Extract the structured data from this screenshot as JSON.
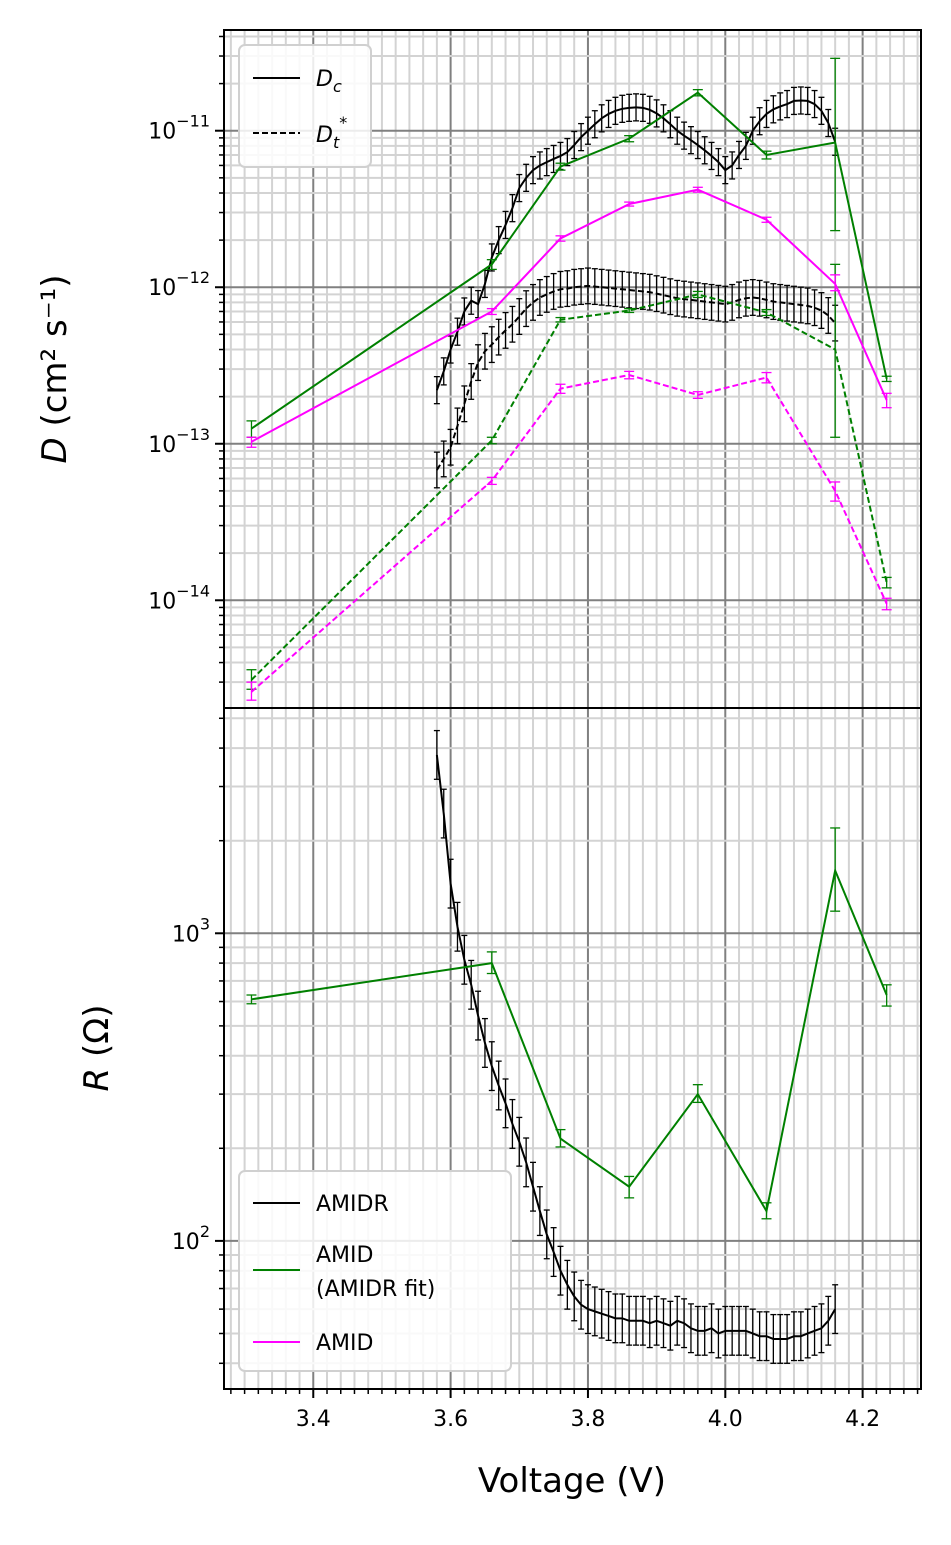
{
  "chart_data": [
    {
      "type": "line",
      "panel": "top",
      "title": "",
      "xlabel": "",
      "ylabel": "D (cm² s⁻¹)",
      "yscale": "log",
      "xlim": [
        3.27,
        4.285
      ],
      "ylim": [
        2.05e-15,
        4.4e-11
      ],
      "grid": true,
      "legend_position": "top-left",
      "legend": [
        {
          "label": "D_c",
          "linestyle": "solid"
        },
        {
          "label": "D_t*",
          "linestyle": "dashed"
        }
      ],
      "yticks": [
        {
          "value": 1e-11,
          "base": "10",
          "exp": "−11"
        },
        {
          "value": 1e-12,
          "base": "10",
          "exp": "−12"
        },
        {
          "value": 1e-13,
          "base": "10",
          "exp": "−13"
        },
        {
          "value": 1e-14,
          "base": "10",
          "exp": "−14"
        }
      ],
      "series": [
        {
          "color": "#000000",
          "linestyle": "solid",
          "kind": "Dc",
          "x": [
            3.58,
            3.59,
            3.6,
            3.61,
            3.62,
            3.63,
            3.64,
            3.65,
            3.66,
            3.67,
            3.68,
            3.69,
            3.7,
            3.71,
            3.72,
            3.73,
            3.74,
            3.75,
            3.76,
            3.77,
            3.78,
            3.79,
            3.8,
            3.81,
            3.82,
            3.83,
            3.84,
            3.85,
            3.86,
            3.87,
            3.88,
            3.89,
            3.9,
            3.91,
            3.92,
            3.93,
            3.94,
            3.95,
            3.96,
            3.97,
            3.98,
            3.99,
            4.0,
            4.01,
            4.02,
            4.03,
            4.04,
            4.05,
            4.06,
            4.07,
            4.08,
            4.09,
            4.1,
            4.11,
            4.12,
            4.13,
            4.14,
            4.15,
            4.16
          ],
          "y": [
            2.2e-13,
            2.9e-13,
            4e-13,
            5.2e-13,
            7e-13,
            8.2e-13,
            7.8e-13,
            1.05e-12,
            1.55e-12,
            2e-12,
            2.5e-12,
            3.2e-12,
            4.3e-12,
            5e-12,
            5.6e-12,
            6e-12,
            6.3e-12,
            6.6e-12,
            6.9e-12,
            7.3e-12,
            8.1e-12,
            9.1e-12,
            1e-11,
            1.1e-11,
            1.2e-11,
            1.28e-11,
            1.34e-11,
            1.38e-11,
            1.4e-11,
            1.41e-11,
            1.4e-11,
            1.36e-11,
            1.29e-11,
            1.2e-11,
            1.1e-11,
            1e-11,
            9.3e-12,
            8.7e-12,
            8.1e-12,
            7.5e-12,
            6.9e-12,
            6.3e-12,
            5.6e-12,
            6e-12,
            7e-12,
            8e-12,
            1e-11,
            1.15e-11,
            1.28e-11,
            1.37e-11,
            1.43e-11,
            1.48e-11,
            1.55e-11,
            1.56e-11,
            1.55e-11,
            1.48e-11,
            1.34e-11,
            1.12e-11,
            8.5e-12
          ],
          "err_factor": 1.22
        },
        {
          "color": "#000000",
          "linestyle": "dashed",
          "kind": "Dt",
          "x": [
            3.58,
            3.59,
            3.6,
            3.61,
            3.62,
            3.63,
            3.64,
            3.65,
            3.66,
            3.67,
            3.68,
            3.69,
            3.7,
            3.71,
            3.72,
            3.73,
            3.74,
            3.75,
            3.76,
            3.77,
            3.78,
            3.79,
            3.8,
            3.81,
            3.82,
            3.83,
            3.84,
            3.85,
            3.86,
            3.87,
            3.88,
            3.89,
            3.9,
            3.91,
            3.92,
            3.93,
            3.94,
            3.95,
            3.96,
            3.97,
            3.98,
            3.99,
            4.0,
            4.01,
            4.02,
            4.03,
            4.04,
            4.05,
            4.06,
            4.07,
            4.08,
            4.09,
            4.1,
            4.11,
            4.12,
            4.13,
            4.14,
            4.15,
            4.16
          ],
          "y": [
            6.8e-14,
            8e-14,
            9.5e-14,
            1.3e-13,
            1.8e-13,
            2.5e-13,
            3.3e-13,
            3.9e-13,
            4.3e-13,
            4.8e-13,
            5.3e-13,
            5.8e-13,
            6.5e-13,
            7.3e-13,
            8e-13,
            8.6e-13,
            9e-13,
            9.4e-13,
            9.7e-13,
            9.8e-13,
            1e-12,
            1.01e-12,
            1.02e-12,
            1.01e-12,
            1e-12,
            9.9e-13,
            9.8e-13,
            9.7e-13,
            9.6e-13,
            9.5e-13,
            9.4e-13,
            9.3e-13,
            9.1e-13,
            8.9e-13,
            8.7e-13,
            8.5e-13,
            8.4e-13,
            8.3e-13,
            8.2e-13,
            8.1e-13,
            8e-13,
            7.9e-13,
            7.8e-13,
            8e-13,
            8.3e-13,
            8.5e-13,
            8.6e-13,
            8.5e-13,
            8.3e-13,
            8.1e-13,
            8e-13,
            7.9e-13,
            7.8e-13,
            7.7e-13,
            7.6e-13,
            7.4e-13,
            7.1e-13,
            6.6e-13,
            5.9e-13
          ],
          "err_factor": 1.3
        },
        {
          "color": "#008000",
          "linestyle": "solid",
          "kind": "Dc",
          "x": [
            3.31,
            3.66,
            3.76,
            3.86,
            3.96,
            4.06,
            4.16,
            4.235
          ],
          "y": [
            1.25e-13,
            1.4e-12,
            5.9e-12,
            8.9e-12,
            1.75e-11,
            7e-12,
            8.4e-12,
            2.6e-13
          ],
          "yerr_lo": [
            1.1e-13,
            1.3e-12,
            5.6e-12,
            8.5e-12,
            1.67e-11,
            6.6e-12,
            2.3e-12,
            2.5e-13
          ],
          "yerr_hi": [
            1.4e-13,
            1.5e-12,
            6.2e-12,
            9.3e-12,
            1.83e-11,
            7.4e-12,
            2.9e-11,
            2.7e-13
          ]
        },
        {
          "color": "#008000",
          "linestyle": "dashed",
          "kind": "Dt",
          "x": [
            3.31,
            3.66,
            3.76,
            3.86,
            3.96,
            4.06,
            4.16,
            4.235
          ],
          "y": [
            3.1e-15,
            1.05e-13,
            6.2e-13,
            7.1e-13,
            9e-13,
            6.9e-13,
            4e-13,
            1.3e-14
          ],
          "yerr_lo": [
            2.7e-15,
            1e-13,
            6e-13,
            6.9e-13,
            8.6e-13,
            6.6e-13,
            1.1e-13,
            1.2e-14
          ],
          "yerr_hi": [
            3.6e-15,
            1.1e-13,
            6.4e-13,
            7.3e-13,
            9.4e-13,
            7.2e-13,
            1.4e-12,
            1.4e-14
          ]
        },
        {
          "color": "#ff00ff",
          "linestyle": "solid",
          "kind": "Dc",
          "x": [
            3.31,
            3.66,
            3.76,
            3.86,
            3.96,
            4.06,
            4.16,
            4.235
          ],
          "y": [
            1.03e-13,
            7e-13,
            2.05e-12,
            3.4e-12,
            4.2e-12,
            2.7e-12,
            1.05e-12,
            1.9e-13
          ],
          "yerr_lo": [
            9.5e-14,
            6.7e-13,
            1.97e-12,
            3.3e-12,
            4.05e-12,
            2.6e-12,
            9.5e-13,
            1.7e-13
          ],
          "yerr_hi": [
            1.1e-13,
            7.3e-13,
            2.13e-12,
            3.5e-12,
            4.35e-12,
            2.8e-12,
            1.2e-12,
            2.1e-13
          ]
        },
        {
          "color": "#ff00ff",
          "linestyle": "dashed",
          "kind": "Dt",
          "x": [
            3.31,
            3.66,
            3.76,
            3.86,
            3.96,
            4.06,
            4.16,
            4.235
          ],
          "y": [
            2.6e-15,
            5.8e-14,
            2.25e-13,
            2.75e-13,
            2.05e-13,
            2.65e-13,
            5e-14,
            9.5e-15
          ],
          "yerr_lo": [
            2.3e-15,
            5.5e-14,
            2.1e-13,
            2.6e-13,
            1.95e-13,
            2.45e-13,
            4.3e-14,
            8.7e-15
          ],
          "yerr_hi": [
            3e-15,
            6.1e-14,
            2.4e-13,
            2.9e-13,
            2.15e-13,
            2.85e-13,
            5.7e-14,
            1.03e-14
          ]
        }
      ]
    },
    {
      "type": "line",
      "panel": "bottom",
      "title": "",
      "xlabel": "Voltage (V)",
      "ylabel": "R (Ω)",
      "yscale": "log",
      "xlim": [
        3.27,
        4.285
      ],
      "ylim": [
        33,
        5400
      ],
      "grid": true,
      "legend_position": "bottom-left",
      "xticks": [
        "3.4",
        "3.6",
        "3.8",
        "4.0",
        "4.2"
      ],
      "xtick_values": [
        3.4,
        3.6,
        3.8,
        4.0,
        4.2
      ],
      "yticks": [
        {
          "value": 1000,
          "base": "10",
          "exp": "3"
        },
        {
          "value": 100,
          "base": "10",
          "exp": "2"
        }
      ],
      "legend": [
        {
          "label": "AMIDR",
          "color": "#000000"
        },
        {
          "label": "AMID",
          "label2": "(AMIDR fit)",
          "color": "#008000"
        },
        {
          "label": "AMID",
          "color": "#ff00ff"
        }
      ],
      "series": [
        {
          "name": "AMIDR",
          "color": "#000000",
          "x": [
            3.58,
            3.59,
            3.6,
            3.61,
            3.62,
            3.63,
            3.64,
            3.65,
            3.66,
            3.67,
            3.68,
            3.69,
            3.7,
            3.71,
            3.72,
            3.73,
            3.74,
            3.75,
            3.76,
            3.77,
            3.78,
            3.79,
            3.8,
            3.81,
            3.82,
            3.83,
            3.84,
            3.85,
            3.86,
            3.87,
            3.88,
            3.89,
            3.9,
            3.91,
            3.92,
            3.93,
            3.94,
            3.95,
            3.96,
            3.97,
            3.98,
            3.99,
            4.0,
            4.01,
            4.02,
            4.03,
            4.04,
            4.05,
            4.06,
            4.07,
            4.08,
            4.09,
            4.1,
            4.11,
            4.12,
            4.13,
            4.14,
            4.15,
            4.16
          ],
          "y": [
            3800,
            2450,
            1450,
            1050,
            820,
            680,
            540,
            440,
            370,
            320,
            280,
            240,
            210,
            180,
            150,
            125,
            105,
            92,
            80,
            72,
            66,
            62,
            60,
            59,
            58,
            57,
            56,
            56,
            55,
            55,
            55,
            54,
            55,
            54,
            53,
            55,
            54,
            52,
            51,
            51,
            52,
            50,
            51,
            51,
            51,
            51,
            50,
            49,
            49,
            48,
            48,
            48,
            49,
            49,
            50,
            51,
            52,
            55,
            60
          ],
          "err_factor": 1.2
        },
        {
          "name": "AMID (AMIDR fit)",
          "color": "#008000",
          "x": [
            3.31,
            3.66,
            3.76,
            3.86,
            3.96,
            4.06,
            4.16,
            4.235
          ],
          "y": [
            610,
            800,
            215,
            150,
            300,
            125,
            1600,
            630
          ],
          "yerr_lo": [
            590,
            740,
            202,
            138,
            282,
            118,
            1180,
            580
          ],
          "yerr_hi": [
            630,
            870,
            230,
            162,
            322,
            133,
            2200,
            680
          ]
        }
      ]
    }
  ]
}
